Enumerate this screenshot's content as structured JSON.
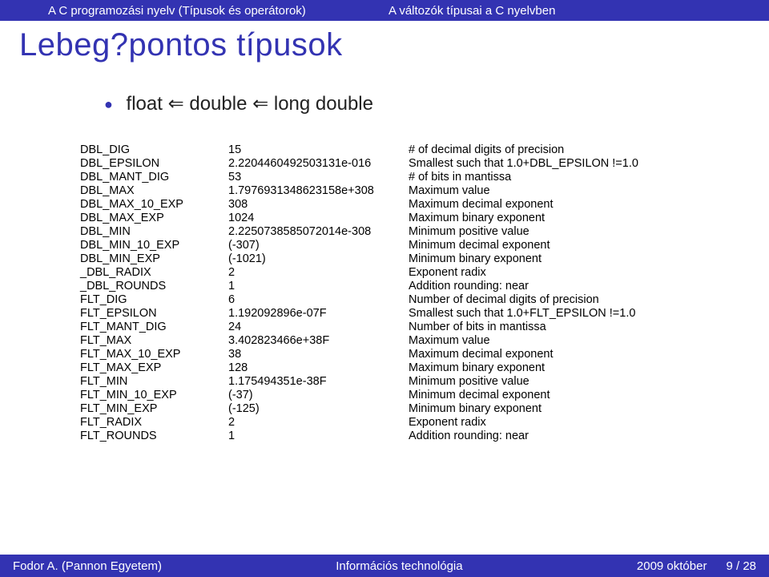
{
  "topbar": {
    "left": "A C programozási nyelv (Típusok és operátorok)",
    "right": "A változók típusai a C nyelvben"
  },
  "title": "Lebeg?pontos típusok",
  "subtitle": "float ⇐ double ⇐ long double",
  "rows": [
    {
      "name": "DBL_DIG",
      "val": "15",
      "desc": "# of decimal digits of precision"
    },
    {
      "name": "DBL_EPSILON",
      "val": "2.2204460492503131e-016",
      "desc": "Smallest such that 1.0+DBL_EPSILON !=1.0"
    },
    {
      "name": "DBL_MANT_DIG",
      "val": "53",
      "desc": "# of bits in mantissa"
    },
    {
      "name": "DBL_MAX",
      "val": "1.7976931348623158e+308",
      "desc": "Maximum value"
    },
    {
      "name": "DBL_MAX_10_EXP",
      "val": "308",
      "desc": "Maximum decimal exponent"
    },
    {
      "name": "DBL_MAX_EXP",
      "val": "1024",
      "desc": "Maximum binary exponent"
    },
    {
      "name": "DBL_MIN",
      "val": "2.2250738585072014e-308",
      "desc": "Minimum positive value"
    },
    {
      "name": "DBL_MIN_10_EXP",
      "val": "(-307)",
      "desc": "Minimum decimal exponent"
    },
    {
      "name": "DBL_MIN_EXP",
      "val": "(-1021)",
      "desc": "Minimum binary exponent"
    },
    {
      "name": "_DBL_RADIX",
      "val": "2",
      "desc": "Exponent radix"
    },
    {
      "name": "_DBL_ROUNDS",
      "val": "1",
      "desc": "Addition rounding: near"
    },
    {
      "name": "FLT_DIG",
      "val": "6",
      "desc": "Number of decimal digits of precision"
    },
    {
      "name": "FLT_EPSILON",
      "val": "1.192092896e-07F",
      "desc": "Smallest such that 1.0+FLT_EPSILON !=1.0"
    },
    {
      "name": "FLT_MANT_DIG",
      "val": "24",
      "desc": "Number of bits in mantissa"
    },
    {
      "name": "FLT_MAX",
      "val": "3.402823466e+38F",
      "desc": "Maximum value"
    },
    {
      "name": "FLT_MAX_10_EXP",
      "val": "38",
      "desc": "Maximum decimal exponent"
    },
    {
      "name": "FLT_MAX_EXP",
      "val": "128",
      "desc": "Maximum binary exponent"
    },
    {
      "name": "FLT_MIN",
      "val": "1.175494351e-38F",
      "desc": "Minimum positive value"
    },
    {
      "name": "FLT_MIN_10_EXP",
      "val": "(-37)",
      "desc": "Minimum decimal exponent"
    },
    {
      "name": "FLT_MIN_EXP",
      "val": "(-125)",
      "desc": "Minimum binary exponent"
    },
    {
      "name": "FLT_RADIX",
      "val": "2",
      "desc": "Exponent radix"
    },
    {
      "name": "FLT_ROUNDS",
      "val": "1",
      "desc": "Addition rounding: near"
    }
  ],
  "footer": {
    "author": "Fodor A. (Pannon Egyetem)",
    "course": "Információs technológia",
    "date": "2009 október",
    "page": "9 / 28"
  }
}
